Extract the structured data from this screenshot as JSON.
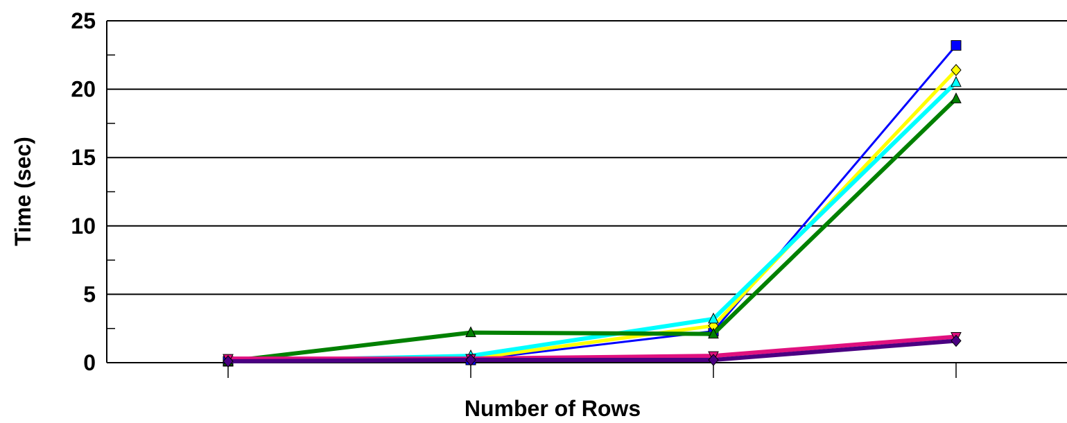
{
  "chart_data": {
    "type": "line",
    "xlabel": "Number of Rows",
    "ylabel": "Time (sec)",
    "categories": [
      "",
      "",
      "",
      ""
    ],
    "ylim": [
      0,
      25
    ],
    "yticks": [
      "0",
      "5",
      "10",
      "15",
      "20",
      "25"
    ],
    "grid": true,
    "legend": "none",
    "series": [
      {
        "color": "#0000ff",
        "marker": "square",
        "values": [
          0.1,
          0.2,
          2.3,
          23.2
        ]
      },
      {
        "color": "#ffff00",
        "marker": "diamond",
        "values": [
          0.1,
          0.3,
          2.7,
          21.4
        ]
      },
      {
        "color": "#00ffff",
        "marker": "triangle-up",
        "values": [
          0.1,
          0.5,
          3.2,
          20.5
        ]
      },
      {
        "color": "#008000",
        "marker": "triangle-up",
        "values": [
          0.1,
          2.2,
          2.1,
          19.3
        ]
      },
      {
        "color": "#e0117f",
        "marker": "triangle-down",
        "values": [
          0.3,
          0.3,
          0.5,
          1.9
        ]
      },
      {
        "color": "#4b0082",
        "marker": "diamond",
        "values": [
          0.1,
          0.2,
          0.2,
          1.6
        ]
      }
    ]
  }
}
